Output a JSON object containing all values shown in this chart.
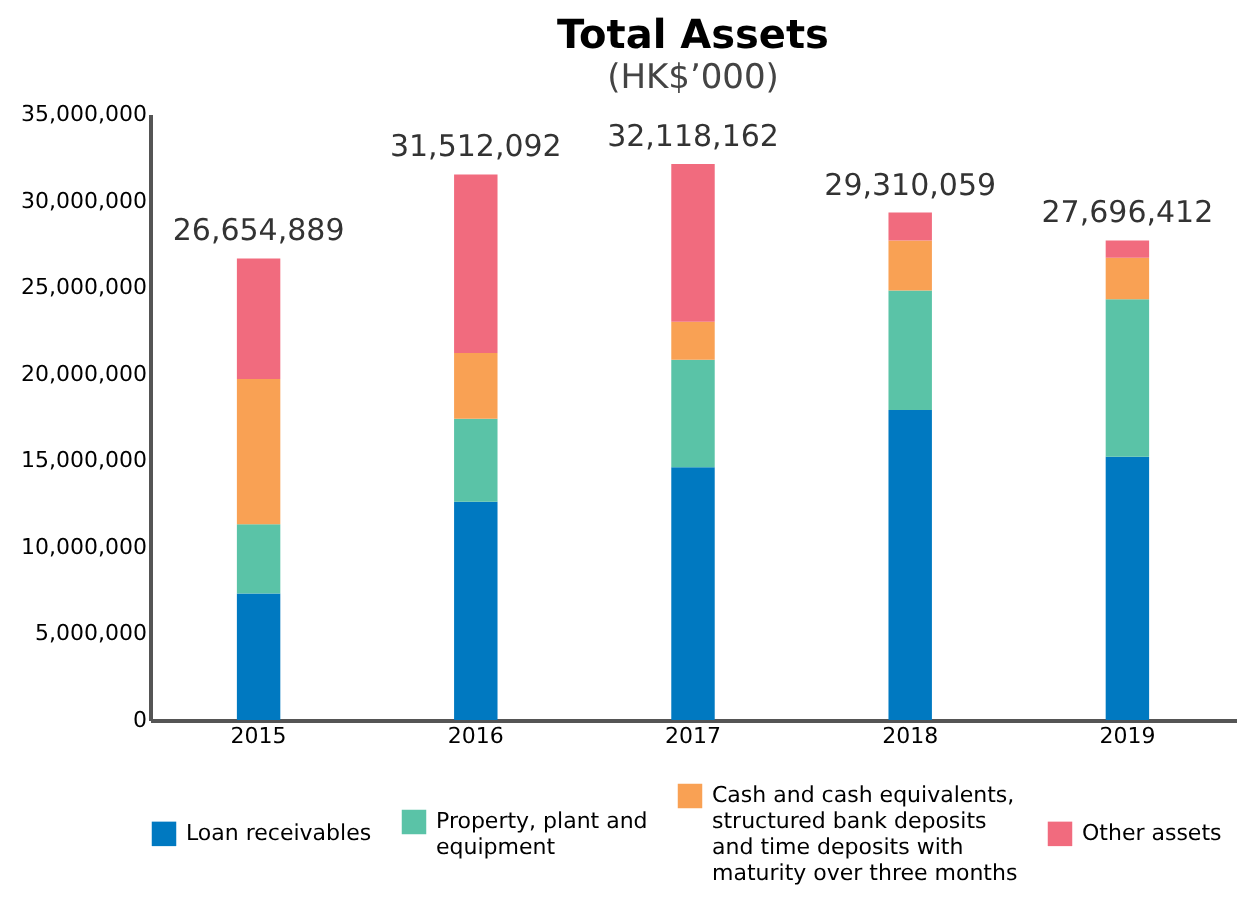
{
  "chart_data": {
    "type": "bar",
    "stacked": true,
    "title": "Total Assets",
    "subtitle": "(HK$’000)",
    "categories": [
      "2015",
      "2016",
      "2017",
      "2018",
      "2019"
    ],
    "series": [
      {
        "name": "Loan receivables",
        "color": "#0079c1",
        "values": [
          7300000.0,
          12600000.0,
          14600000.0,
          17900000.0,
          15200000.0
        ]
      },
      {
        "name": "Property, plant and equipment",
        "color": "#5ac3a7",
        "values": [
          4000000.0,
          4800000.0,
          6200000.0,
          6900000.0,
          9100000.0
        ]
      },
      {
        "name": "Cash and cash equivalents, structured bank deposits and time deposits with maturity over three months",
        "color": "#f9a154",
        "values": [
          8400000.0,
          3800000.0,
          2200000.0,
          2900000.0,
          2400000.0
        ]
      },
      {
        "name": "Other assets",
        "color": "#f16b7e",
        "values": [
          6954889,
          10312092,
          9118162,
          1610059,
          996412
        ]
      }
    ],
    "totals": [
      "26,654,889",
      "31,512,092",
      "32,118,162",
      "29,310,059",
      "27,696,412"
    ],
    "ylim": [
      0,
      35000000
    ],
    "yticks": [
      0,
      {
        "value": 5000000,
        "label": "5,000,000"
      },
      {
        "value": 10000000,
        "label": "10,000,000"
      },
      {
        "value": 15000000,
        "label": "15,000,000"
      },
      {
        "value": 20000000,
        "label": "20,000,000"
      },
      {
        "value": 25000000,
        "label": "25,000,000"
      },
      {
        "value": 30000000,
        "label": "30,000,000"
      },
      {
        "value": 35000000,
        "label": "35,000,000"
      }
    ],
    "grid": false,
    "legend": "bottom"
  }
}
